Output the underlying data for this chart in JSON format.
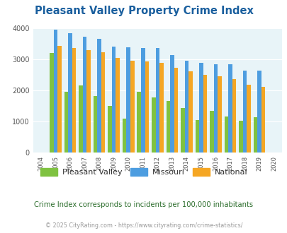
{
  "title": "Pleasant Valley Property Crime Index",
  "years": [
    2004,
    2005,
    2006,
    2007,
    2008,
    2009,
    2010,
    2011,
    2012,
    2013,
    2014,
    2015,
    2016,
    2017,
    2018,
    2019,
    2020
  ],
  "pleasant_valley": [
    0,
    3200,
    1950,
    2150,
    1820,
    1500,
    1100,
    1960,
    1760,
    1650,
    1430,
    1050,
    1340,
    1160,
    1020,
    1130,
    0
  ],
  "missouri": [
    0,
    3950,
    3830,
    3720,
    3650,
    3410,
    3380,
    3360,
    3360,
    3140,
    2940,
    2880,
    2830,
    2840,
    2640,
    2640,
    0
  ],
  "national": [
    0,
    3420,
    3350,
    3280,
    3210,
    3050,
    2950,
    2920,
    2870,
    2730,
    2600,
    2490,
    2440,
    2360,
    2170,
    2100,
    0
  ],
  "pleasant_valley_color": "#7fc241",
  "missouri_color": "#4d9de0",
  "national_color": "#f5a623",
  "bg_color": "#e8f4f8",
  "ylim": [
    0,
    4000
  ],
  "yticks": [
    0,
    1000,
    2000,
    3000,
    4000
  ],
  "subtitle": "Crime Index corresponds to incidents per 100,000 inhabitants",
  "footer": "© 2025 CityRating.com - https://www.cityrating.com/crime-statistics/",
  "title_color": "#1a5f9e",
  "subtitle_color": "#2d6e2d",
  "footer_color": "#999999",
  "legend_labels": [
    "Pleasant Valley",
    "Missouri",
    "National"
  ]
}
